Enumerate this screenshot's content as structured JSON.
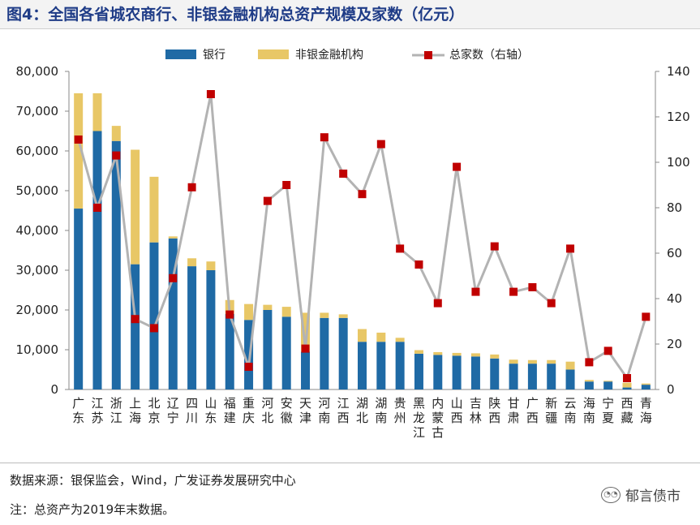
{
  "title": "图4：全国各省城农商行、非银金融机构总资产规模及家数（亿元）",
  "footer": {
    "source": "数据来源：银保监会，Wind，广发证券发展研究中心",
    "note": "注：总资产为2019年末数据。",
    "watermark": "郁言债市",
    "watermark_icon": "wechat-icon"
  },
  "chart_data": {
    "type": "bar",
    "stacked": true,
    "categories": [
      "广东",
      "江苏",
      "浙江",
      "上海",
      "北京",
      "辽宁",
      "四川",
      "山东",
      "福建",
      "重庆",
      "河北",
      "安徽",
      "天津",
      "河南",
      "江西",
      "湖北",
      "湖南",
      "贵州",
      "黑龙江",
      "内蒙古",
      "山西",
      "吉林",
      "陕西",
      "甘肃",
      "广西",
      "新疆",
      "云南",
      "海南",
      "宁夏",
      "西藏",
      "青海"
    ],
    "series": [
      {
        "name": "银行",
        "type": "bar",
        "axis": "left",
        "color": "#1f6aa5",
        "values": [
          45500,
          65000,
          62500,
          31500,
          37000,
          38000,
          31000,
          30000,
          19000,
          17500,
          20000,
          18300,
          9500,
          18000,
          18000,
          12000,
          12000,
          12000,
          9000,
          8700,
          8500,
          8300,
          7800,
          6500,
          6500,
          6500,
          5000,
          2000,
          2000,
          500,
          1200
        ]
      },
      {
        "name": "非银金融机构",
        "type": "bar",
        "axis": "left",
        "color": "#e8c766",
        "values": [
          29000,
          9500,
          3800,
          28800,
          16500,
          500,
          2000,
          2200,
          3500,
          4000,
          1300,
          2500,
          9800,
          1300,
          900,
          3200,
          2300,
          1000,
          900,
          700,
          700,
          800,
          1000,
          1000,
          900,
          900,
          2000,
          400,
          200,
          1200,
          300
        ]
      },
      {
        "name": "总家数（右轴）",
        "type": "line",
        "axis": "right",
        "color": "#c00000",
        "line_color": "#b3b3b3",
        "values": [
          110,
          80,
          103,
          31,
          27,
          49,
          89,
          130,
          33,
          10,
          83,
          90,
          18,
          111,
          95,
          86,
          108,
          62,
          55,
          38,
          98,
          43,
          63,
          43,
          45,
          38,
          62,
          12,
          17,
          5,
          32
        ]
      }
    ],
    "left_axis": {
      "min": 0,
      "max": 80000,
      "ticks": [
        "0",
        "10,000",
        "20,000",
        "30,000",
        "40,000",
        "50,000",
        "60,000",
        "70,000",
        "80,000"
      ]
    },
    "right_axis": {
      "min": 0,
      "max": 140,
      "ticks": [
        "0",
        "20",
        "40",
        "60",
        "80",
        "100",
        "120",
        "140"
      ]
    },
    "legend_position": "top-center",
    "grid": false
  }
}
